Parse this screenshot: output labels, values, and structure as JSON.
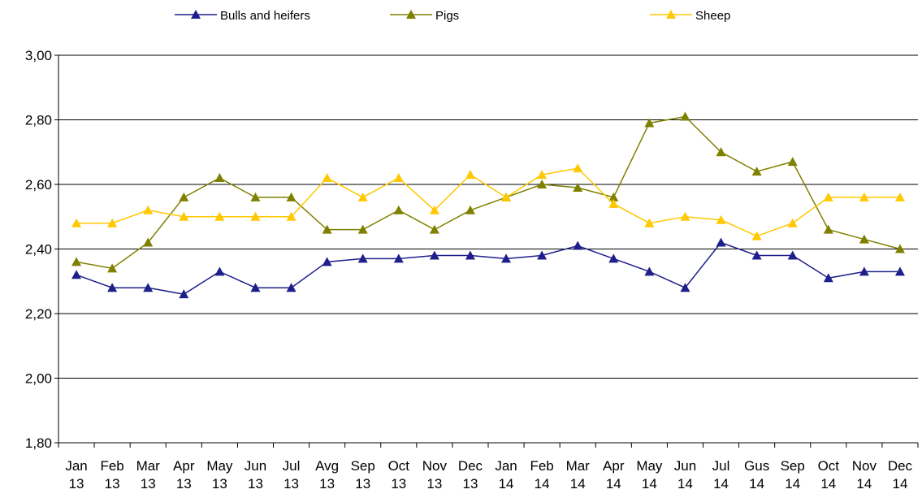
{
  "chart_data": {
    "type": "line",
    "categories": [
      "Jan 13",
      "Feb 13",
      "Mar 13",
      "Apr 13",
      "May 13",
      "Jun 13",
      "Jul 13",
      "Avg 13",
      "Sep 13",
      "Oct 13",
      "Nov 13",
      "Dec 13",
      "Jan 14",
      "Feb 14",
      "Mar 14",
      "Apr 14",
      "May 14",
      "Jun 14",
      "Jul 14",
      "Gus 14",
      "Sep 14",
      "Oct 14",
      "Nov 14",
      "Dec 14"
    ],
    "series": [
      {
        "name": "Bulls and heifers",
        "color": "#1f1f8c",
        "values": [
          2.32,
          2.28,
          2.28,
          2.26,
          2.33,
          2.28,
          2.28,
          2.36,
          2.37,
          2.37,
          2.38,
          2.38,
          2.37,
          2.38,
          2.41,
          2.37,
          2.33,
          2.28,
          2.42,
          2.38,
          2.38,
          2.31,
          2.33,
          2.33
        ]
      },
      {
        "name": "Pigs",
        "color": "#808000",
        "values": [
          2.36,
          2.34,
          2.42,
          2.56,
          2.62,
          2.56,
          2.56,
          2.46,
          2.46,
          2.52,
          2.46,
          2.52,
          2.56,
          2.6,
          2.59,
          2.56,
          2.79,
          2.81,
          2.7,
          2.64,
          2.67,
          2.46,
          2.43,
          2.4
        ]
      },
      {
        "name": "Sheep",
        "color": "#ffc800",
        "values": [
          2.48,
          2.48,
          2.52,
          2.5,
          2.5,
          2.5,
          2.5,
          2.62,
          2.56,
          2.62,
          2.52,
          2.63,
          2.56,
          2.63,
          2.65,
          2.54,
          2.48,
          2.5,
          2.49,
          2.44,
          2.48,
          2.56,
          2.56,
          2.56
        ]
      }
    ],
    "ylim": [
      1.8,
      3.0
    ],
    "yticks": [
      {
        "value": 1.8,
        "label": "1,80"
      },
      {
        "value": 2.0,
        "label": "2,00"
      },
      {
        "value": 2.2,
        "label": "2,20"
      },
      {
        "value": 2.4,
        "label": "2,40"
      },
      {
        "value": 2.6,
        "label": "2,60"
      },
      {
        "value": 2.8,
        "label": "2,80"
      },
      {
        "value": 3.0,
        "label": "3,00"
      }
    ],
    "grid": true
  }
}
